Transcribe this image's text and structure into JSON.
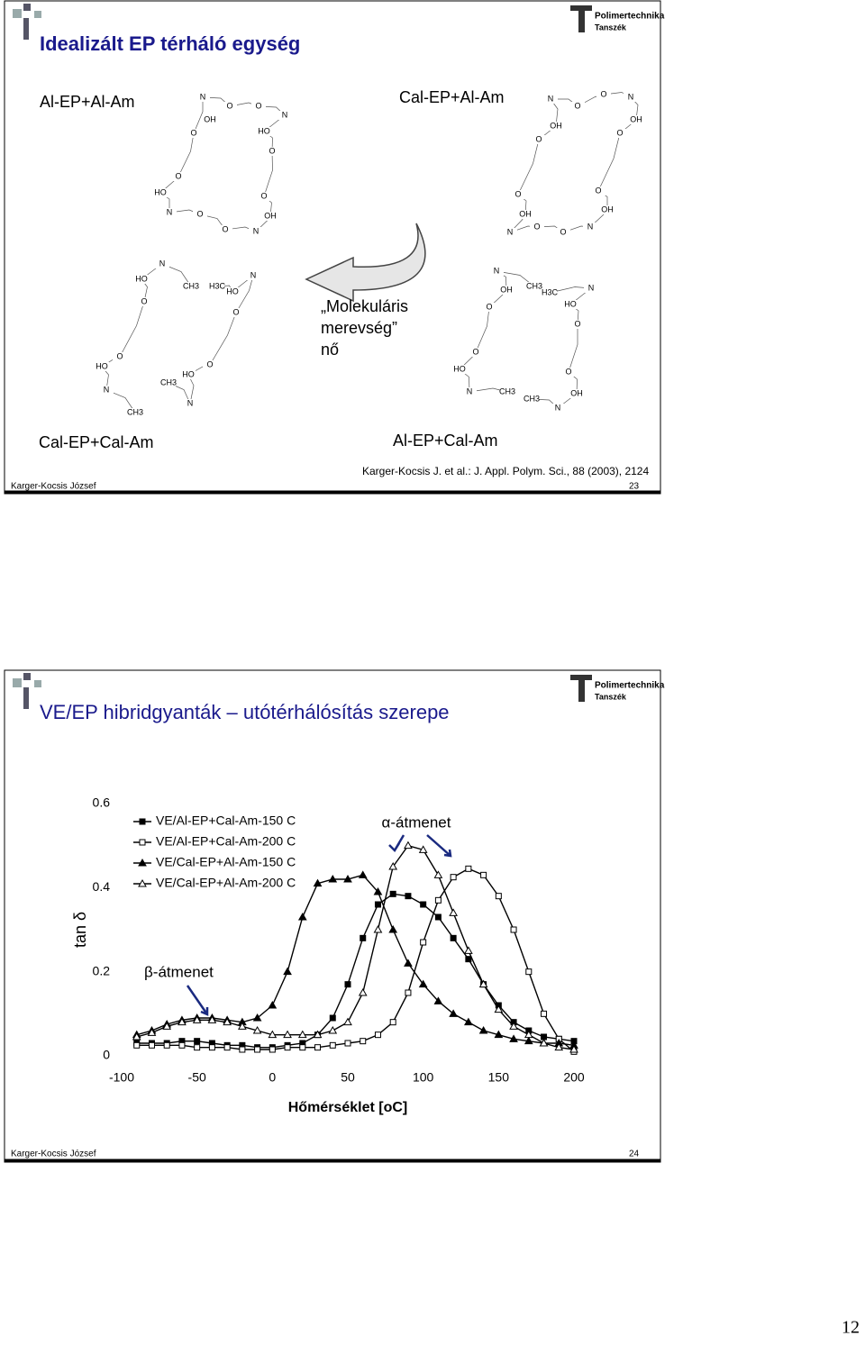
{
  "slide1": {
    "title": "Idealizált EP térháló egység",
    "logo": [
      "Polimertechnika",
      "Tanszék"
    ],
    "captions": [
      "Al-EP+Al-Am",
      "Cal-EP+Al-Am",
      "Cal-EP+Cal-Am",
      "Al-EP+Cal-Am"
    ],
    "arrow_text": [
      "„Molekuláris",
      "merevség”",
      "nő"
    ],
    "citation": "Karger-Kocsis J. et al.: J. Appl. Polym. Sci., 88 (2003), 2124",
    "structures": [
      {
        "atoms": [
          "N",
          "OH",
          "O",
          "O",
          "N",
          "O",
          "HO",
          "O",
          "O",
          "HO",
          "O",
          "N",
          "O",
          "O",
          "OH",
          "N"
        ]
      },
      {
        "atoms": [
          "N",
          "O",
          "O",
          "N",
          "OH",
          "OH",
          "O",
          "O",
          "O",
          "O",
          "OH",
          "OH",
          "N",
          "O",
          "O",
          "N"
        ]
      },
      {
        "atoms": [
          "N",
          "HO",
          "CH3",
          "H3C",
          "HO",
          "N",
          "O",
          "O",
          "O",
          "HO",
          "O",
          "HO",
          "CH3",
          "N",
          "N",
          "CH3"
        ]
      },
      {
        "atoms": [
          "N",
          "OH",
          "CH3",
          "H3C",
          "N",
          "HO",
          "O",
          "O",
          "O",
          "HO",
          "O",
          "N",
          "CH3",
          "CH3",
          "OH",
          "N"
        ]
      }
    ],
    "footer": {
      "author": "Karger-Kocsis József",
      "page": "23"
    }
  },
  "slide2": {
    "title": "VE/EP hibridgyanták – utótérhálósítás szerepe",
    "logo": [
      "Polimertechnika",
      "Tanszék"
    ],
    "footer": {
      "author": "Karger-Kocsis József",
      "page": "24"
    }
  },
  "chart_data": {
    "type": "line",
    "x_label": "Hőmérséklet [oC]",
    "y_label": "tan δ",
    "x": [
      -90,
      -80,
      -70,
      -60,
      -50,
      -40,
      -30,
      -20,
      -10,
      0,
      10,
      20,
      30,
      40,
      50,
      60,
      70,
      80,
      90,
      100,
      110,
      120,
      130,
      140,
      150,
      160,
      170,
      180,
      190,
      200
    ],
    "series": [
      {
        "name": "VE/Al-EP+Cal-Am-150 C",
        "color": "#000000",
        "marker": "square-filled",
        "values": [
          0.03,
          0.03,
          0.03,
          0.035,
          0.035,
          0.03,
          0.025,
          0.025,
          0.02,
          0.02,
          0.025,
          0.03,
          0.05,
          0.09,
          0.17,
          0.28,
          0.36,
          0.385,
          0.38,
          0.36,
          0.33,
          0.28,
          0.23,
          0.17,
          0.12,
          0.08,
          0.06,
          0.045,
          0.04,
          0.035
        ]
      },
      {
        "name": "VE/Al-EP+Cal-Am-200 C",
        "color": "#000000",
        "marker": "square-open",
        "values": [
          0.025,
          0.025,
          0.025,
          0.025,
          0.02,
          0.02,
          0.02,
          0.015,
          0.015,
          0.015,
          0.02,
          0.02,
          0.02,
          0.025,
          0.03,
          0.035,
          0.05,
          0.08,
          0.15,
          0.27,
          0.37,
          0.425,
          0.445,
          0.43,
          0.38,
          0.3,
          0.2,
          0.1,
          0.04,
          0.01
        ]
      },
      {
        "name": "VE/Cal-EP+Al-Am-150 C",
        "color": "#000000",
        "marker": "triangle-filled",
        "values": [
          0.05,
          0.06,
          0.075,
          0.085,
          0.09,
          0.09,
          0.085,
          0.08,
          0.09,
          0.12,
          0.2,
          0.33,
          0.41,
          0.42,
          0.42,
          0.43,
          0.39,
          0.3,
          0.22,
          0.17,
          0.13,
          0.1,
          0.08,
          0.06,
          0.05,
          0.04,
          0.035,
          0.03,
          0.03,
          0.025
        ]
      },
      {
        "name": "VE/Cal-EP+Al-Am-200 C",
        "color": "#000000",
        "marker": "triangle-open",
        "values": [
          0.045,
          0.055,
          0.07,
          0.08,
          0.085,
          0.085,
          0.08,
          0.07,
          0.06,
          0.05,
          0.05,
          0.05,
          0.05,
          0.06,
          0.08,
          0.15,
          0.3,
          0.45,
          0.5,
          0.49,
          0.43,
          0.34,
          0.25,
          0.17,
          0.11,
          0.07,
          0.05,
          0.03,
          0.02,
          0.015
        ]
      }
    ],
    "xlim": [
      -100,
      200
    ],
    "ylim": [
      0,
      0.6
    ],
    "xticks": [
      -100,
      -50,
      0,
      50,
      100,
      150,
      200
    ],
    "yticks": [
      0,
      0.2,
      0.4,
      0.6
    ],
    "annotations": [
      "α-átmenet",
      "β-átmenet"
    ]
  },
  "page_number": "12"
}
